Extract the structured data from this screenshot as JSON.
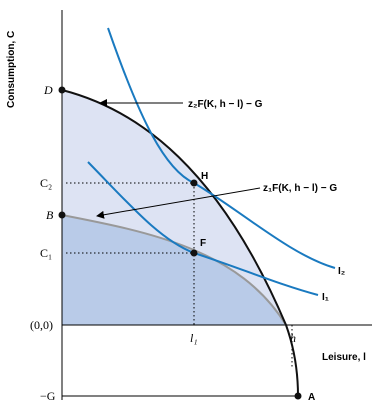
{
  "axes": {
    "y_label": "Consumption, C",
    "x_label": "Leisure, l"
  },
  "points": {
    "D": "D",
    "B": "B",
    "H": "H",
    "F": "F",
    "A": "A"
  },
  "ticks": {
    "c2": "C₂",
    "c1": "C₁",
    "origin": "(0,0)",
    "minus_g": "−G",
    "l1": "l₁",
    "h": "h"
  },
  "curves": {
    "outer": "z₂F(K, h − l) − G",
    "inner": "z₁F(K, h − l) − G",
    "i2": "I₂",
    "i1": "I₁"
  }
}
